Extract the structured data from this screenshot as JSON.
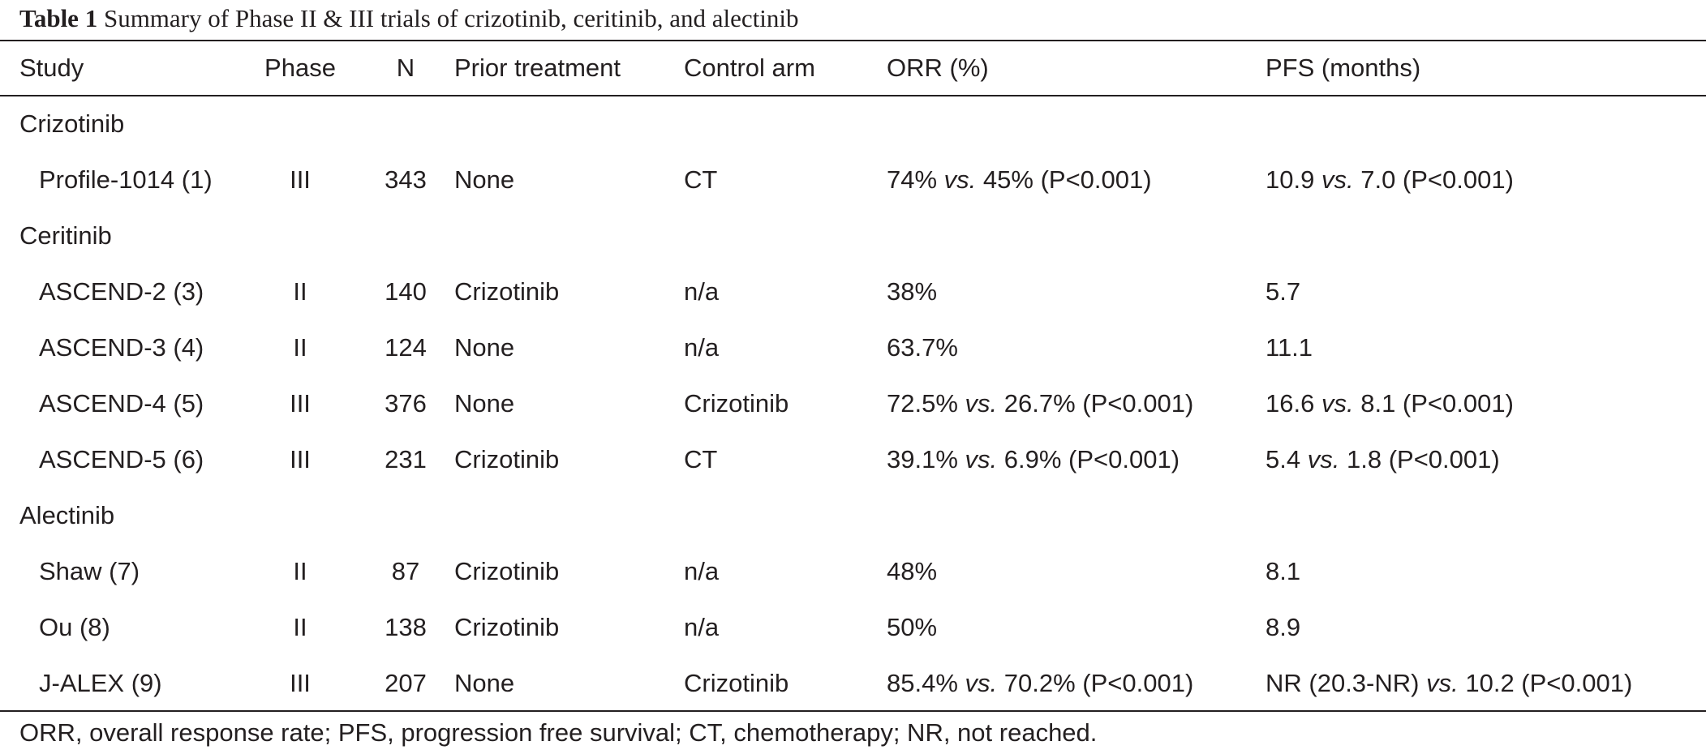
{
  "caption": {
    "label": "Table 1",
    "text": "Summary of Phase II & III trials of crizotinib, ceritinib, and alectinib"
  },
  "headers": {
    "study": "Study",
    "phase": "Phase",
    "n": "N",
    "prior": "Prior treatment",
    "control": "Control arm",
    "orr": "ORR (%)",
    "pfs": "PFS (months)"
  },
  "connector": "vs.",
  "groups": [
    {
      "name": "Crizotinib",
      "rows": [
        {
          "study": "Profile-1014 (1)",
          "phase": "III",
          "n": "343",
          "prior": "None",
          "control": "CT",
          "orr": [
            "74%",
            "45% (P<0.001)"
          ],
          "pfs": [
            "10.9",
            "7.0 (P<0.001)"
          ]
        }
      ]
    },
    {
      "name": "Ceritinib",
      "rows": [
        {
          "study": "ASCEND-2 (3)",
          "phase": "II",
          "n": "140",
          "prior": "Crizotinib",
          "control": "n/a",
          "orr": [
            "38%"
          ],
          "pfs": [
            "5.7"
          ]
        },
        {
          "study": "ASCEND-3 (4)",
          "phase": "II",
          "n": "124",
          "prior": "None",
          "control": "n/a",
          "orr": [
            "63.7%"
          ],
          "pfs": [
            "11.1"
          ]
        },
        {
          "study": "ASCEND-4 (5)",
          "phase": "III",
          "n": "376",
          "prior": "None",
          "control": "Crizotinib",
          "orr": [
            "72.5%",
            "26.7% (P<0.001)"
          ],
          "pfs": [
            "16.6",
            "8.1 (P<0.001)"
          ]
        },
        {
          "study": "ASCEND-5 (6)",
          "phase": "III",
          "n": "231",
          "prior": "Crizotinib",
          "control": "CT",
          "orr": [
            "39.1%",
            "6.9% (P<0.001)"
          ],
          "pfs": [
            "5.4",
            "1.8 (P<0.001)"
          ]
        }
      ]
    },
    {
      "name": "Alectinib",
      "rows": [
        {
          "study": "Shaw (7)",
          "phase": "II",
          "n": "87",
          "prior": "Crizotinib",
          "control": "n/a",
          "orr": [
            "48%"
          ],
          "pfs": [
            "8.1"
          ]
        },
        {
          "study": "Ou (8)",
          "phase": "II",
          "n": "138",
          "prior": "Crizotinib",
          "control": "n/a",
          "orr": [
            "50%"
          ],
          "pfs": [
            "8.9"
          ]
        },
        {
          "study": "J-ALEX (9)",
          "phase": "III",
          "n": "207",
          "prior": "None",
          "control": "Crizotinib",
          "orr": [
            "85.4%",
            "70.2% (P<0.001)"
          ],
          "pfs": [
            "NR (20.3-NR)",
            "10.2 (P<0.001)"
          ]
        }
      ]
    }
  ],
  "footnote": "ORR, overall response rate; PFS, progression free survival; CT, chemotherapy; NR, not reached."
}
